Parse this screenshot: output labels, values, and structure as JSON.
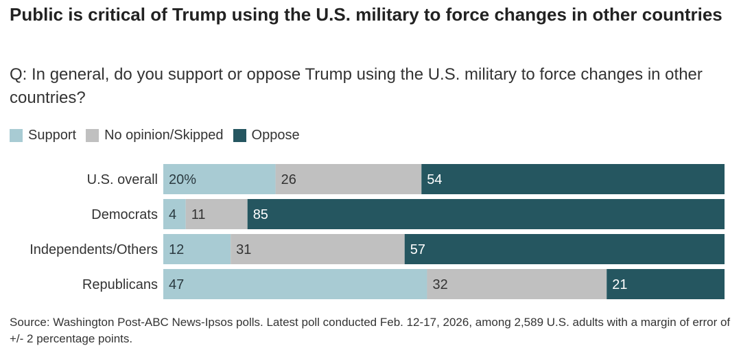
{
  "header": {
    "title": "Public is critical of Trump using the U.S. military to force changes in other countries",
    "subtitle": "Q: In general, do you support or oppose Trump using the U.S. military to force changes in other countries?"
  },
  "legend": [
    {
      "label": "Support",
      "color": "#a8cbd3"
    },
    {
      "label": "No opinion/Skipped",
      "color": "#c0c0c0"
    },
    {
      "label": "Oppose",
      "color": "#255660"
    }
  ],
  "chart_data": {
    "type": "bar",
    "orientation": "horizontal",
    "stacked": true,
    "title": "Public is critical of Trump using the U.S. military to force changes in other countries",
    "subtitle": "Q: In general, do you support or oppose Trump using the U.S. military to force changes in other countries?",
    "categories": [
      "U.S. overall",
      "Democrats",
      "Independents/Others",
      "Republicans"
    ],
    "series": [
      {
        "name": "Support",
        "color": "#a8cbd3",
        "label_color": "#2b3a40",
        "values": [
          20,
          4,
          12,
          47
        ],
        "labels": [
          "20%",
          "4",
          "12",
          "47"
        ]
      },
      {
        "name": "No opinion/Skipped",
        "color": "#c0c0c0",
        "label_color": "#333333",
        "values": [
          26,
          11,
          31,
          32
        ],
        "labels": [
          "26",
          "11",
          "31",
          "32"
        ]
      },
      {
        "name": "Oppose",
        "color": "#255660",
        "label_color": "#ffffff",
        "values": [
          54,
          85,
          57,
          21
        ],
        "labels": [
          "54",
          "85",
          "57",
          "21"
        ]
      }
    ],
    "xlim": [
      0,
      100
    ],
    "xlabel": "",
    "ylabel": "",
    "grid": false,
    "legend_position": "top-left"
  },
  "footer": {
    "source": "Source: Washington Post-ABC News-Ipsos polls. Latest poll conducted Feb. 12-17, 2026, among 2,589 U.S. adults with a margin of error of +/- 2 percentage points."
  }
}
